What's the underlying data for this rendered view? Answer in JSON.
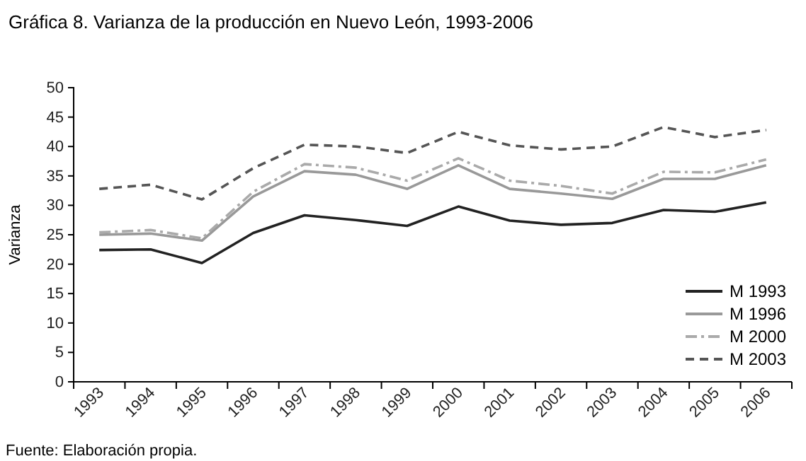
{
  "chart_data": {
    "type": "line",
    "title": "Gráfica 8. Varianza de la producción en Nuevo León, 1993-2006",
    "ylabel": "Varianza",
    "annotations": [
      "Fuente: Elaboración propia."
    ],
    "categories": [
      "1993",
      "1994",
      "1995",
      "1996",
      "1997",
      "1998",
      "1999",
      "2000",
      "2001",
      "2002",
      "2003",
      "2004",
      "2005",
      "2006"
    ],
    "series": [
      {
        "name": "M 1993",
        "color": "#222222",
        "line_style": "solid",
        "values": [
          22.4,
          22.5,
          20.2,
          25.3,
          28.3,
          27.5,
          26.5,
          29.8,
          27.4,
          26.7,
          27.0,
          29.2,
          28.9,
          30.5
        ]
      },
      {
        "name": "M 1996",
        "color": "#999999",
        "line_style": "solid",
        "values": [
          25.0,
          25.2,
          24.0,
          31.5,
          35.8,
          35.2,
          32.8,
          36.8,
          32.8,
          32.0,
          31.1,
          34.5,
          34.5,
          36.8
        ]
      },
      {
        "name": "M 2000",
        "color": "#aaaaaa",
        "line_style": "dashdot",
        "values": [
          25.4,
          25.8,
          24.4,
          32.3,
          37.0,
          36.4,
          34.2,
          38.0,
          34.2,
          33.3,
          32.0,
          35.7,
          35.6,
          37.8
        ]
      },
      {
        "name": "M 2003",
        "color": "#555555",
        "line_style": "dashed",
        "values": [
          32.8,
          33.5,
          31.0,
          36.3,
          40.3,
          40.0,
          38.9,
          42.5,
          40.2,
          39.5,
          40.0,
          43.3,
          41.6,
          42.8
        ]
      }
    ],
    "ylim": [
      0,
      50
    ],
    "yticks": [
      0,
      5,
      10,
      15,
      20,
      25,
      30,
      35,
      40,
      45,
      50
    ],
    "grid": false,
    "legend": "bottom right",
    "marker": "none"
  }
}
